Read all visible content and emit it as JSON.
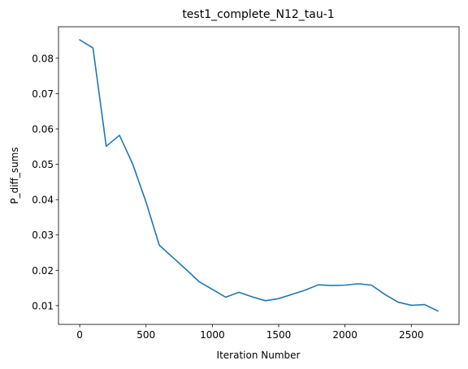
{
  "chart_data": {
    "type": "line",
    "title": "test1_complete_N12_tau-1",
    "xlabel": "Iteration Number",
    "ylabel": "P_diff_sums",
    "xlim": [
      -160,
      2860
    ],
    "ylim": [
      0.0047,
      0.0889
    ],
    "x_ticks": [
      0,
      500,
      1000,
      1500,
      2000,
      2500
    ],
    "y_ticks": [
      0.01,
      0.02,
      0.03,
      0.04,
      0.05,
      0.06,
      0.07,
      0.08
    ],
    "grid": false,
    "line_color": "#1f77b4",
    "series": [
      {
        "x": [
          0,
          100,
          200,
          300,
          400,
          500,
          600,
          700,
          800,
          900,
          1000,
          1100,
          1200,
          1300,
          1400,
          1500,
          1600,
          1700,
          1800,
          1900,
          2000,
          2100,
          2200,
          2300,
          2400,
          2500,
          2600,
          2700
        ],
        "values": [
          0.0852,
          0.0829,
          0.0551,
          0.0582,
          0.05,
          0.0393,
          0.0271,
          0.0237,
          0.0203,
          0.0168,
          0.0146,
          0.0124,
          0.0138,
          0.0125,
          0.0114,
          0.012,
          0.0132,
          0.0144,
          0.0159,
          0.0157,
          0.0158,
          0.0162,
          0.0158,
          0.0132,
          0.011,
          0.0101,
          0.0103,
          0.0085
        ]
      }
    ]
  }
}
